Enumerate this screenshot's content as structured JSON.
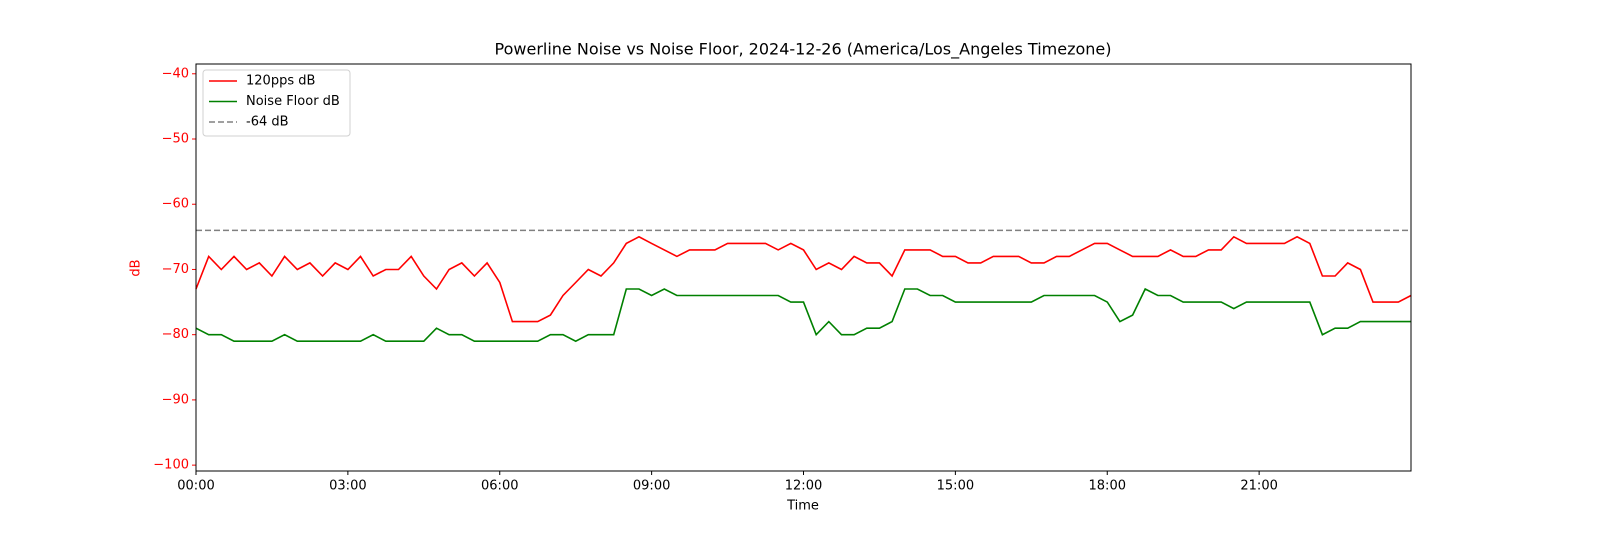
{
  "chart_data": {
    "type": "line",
    "title": "Powerline Noise vs Noise Floor, 2024-12-26 (America/Los_Angeles Timezone)",
    "x_label": "Time",
    "y_label": "dB",
    "axis_color": "red",
    "x": [
      0,
      0.25,
      0.5,
      0.75,
      1,
      1.25,
      1.5,
      1.75,
      2,
      2.25,
      2.5,
      2.75,
      3,
      3.25,
      3.5,
      3.75,
      4,
      4.25,
      4.5,
      4.75,
      5,
      5.25,
      5.5,
      5.75,
      6,
      6.25,
      6.5,
      6.75,
      7,
      7.25,
      7.5,
      7.75,
      8,
      8.25,
      8.5,
      8.75,
      9,
      9.25,
      9.5,
      9.75,
      10,
      10.25,
      10.5,
      10.75,
      11,
      11.25,
      11.5,
      11.75,
      12,
      12.25,
      12.5,
      12.75,
      13,
      13.25,
      13.5,
      13.75,
      14,
      14.25,
      14.5,
      14.75,
      15,
      15.25,
      15.5,
      15.75,
      16,
      16.25,
      16.5,
      16.75,
      17,
      17.25,
      17.5,
      17.75,
      18,
      18.25,
      18.5,
      18.75,
      19,
      19.25,
      19.5,
      19.75,
      20,
      20.25,
      20.5,
      20.75,
      21,
      21.25,
      21.5,
      21.75,
      22,
      22.25,
      22.5,
      22.75,
      23,
      23.25,
      23.5,
      23.75,
      24
    ],
    "series": [
      {
        "name": "120pps dB",
        "color": "red",
        "values": [
          -73,
          -68,
          -70,
          -68,
          -70,
          -69,
          -71,
          -68,
          -70,
          -69,
          -71,
          -69,
          -70,
          -68,
          -71,
          -70,
          -70,
          -68,
          -71,
          -73,
          -70,
          -69,
          -71,
          -69,
          -72,
          -78,
          -78,
          -78,
          -77,
          -74,
          -72,
          -70,
          -71,
          -69,
          -66,
          -65,
          -66,
          -67,
          -68,
          -67,
          -67,
          -67,
          -66,
          -66,
          -66,
          -66,
          -67,
          -66,
          -67,
          -70,
          -69,
          -70,
          -68,
          -69,
          -69,
          -71,
          -67,
          -67,
          -67,
          -68,
          -68,
          -69,
          -69,
          -68,
          -68,
          -68,
          -69,
          -69,
          -68,
          -68,
          -67,
          -66,
          -66,
          -67,
          -68,
          -68,
          -68,
          -67,
          -68,
          -68,
          -67,
          -67,
          -65,
          -66,
          -66,
          -66,
          -66,
          -65,
          -66,
          -71,
          -71,
          -69,
          -70,
          -75,
          -75,
          -75,
          -74
        ]
      },
      {
        "name": "Noise Floor dB",
        "color": "green",
        "values": [
          -79,
          -80,
          -80,
          -81,
          -81,
          -81,
          -81,
          -80,
          -81,
          -81,
          -81,
          -81,
          -81,
          -81,
          -80,
          -81,
          -81,
          -81,
          -81,
          -79,
          -80,
          -80,
          -81,
          -81,
          -81,
          -81,
          -81,
          -81,
          -80,
          -80,
          -81,
          -80,
          -80,
          -80,
          -73,
          -73,
          -74,
          -73,
          -74,
          -74,
          -74,
          -74,
          -74,
          -74,
          -74,
          -74,
          -74,
          -75,
          -75,
          -80,
          -78,
          -80,
          -80,
          -79,
          -79,
          -78,
          -73,
          -73,
          -74,
          -74,
          -75,
          -75,
          -75,
          -75,
          -75,
          -75,
          -75,
          -74,
          -74,
          -74,
          -74,
          -74,
          -75,
          -78,
          -77,
          -73,
          -74,
          -74,
          -75,
          -75,
          -75,
          -75,
          -76,
          -75,
          -75,
          -75,
          -75,
          -75,
          -75,
          -80,
          -79,
          -79,
          -78,
          -78,
          -78,
          -78,
          -78
        ]
      }
    ],
    "hline": {
      "name": "-64 dB",
      "value": -64,
      "color": "gray"
    },
    "xlim": [
      0,
      24
    ],
    "xticks": [
      {
        "value": 0,
        "label": "00:00"
      },
      {
        "value": 3,
        "label": "03:00"
      },
      {
        "value": 6,
        "label": "06:00"
      },
      {
        "value": 9,
        "label": "09:00"
      },
      {
        "value": 12,
        "label": "12:00"
      },
      {
        "value": 15,
        "label": "15:00"
      },
      {
        "value": 18,
        "label": "18:00"
      },
      {
        "value": 21,
        "label": "21:00"
      }
    ],
    "ylim": [
      -100.9,
      -38.5
    ],
    "yticks": [
      {
        "value": -100,
        "label": "−100"
      },
      {
        "value": -90,
        "label": "−90"
      },
      {
        "value": -80,
        "label": "−80"
      },
      {
        "value": -70,
        "label": "−70"
      },
      {
        "value": -60,
        "label": "−60"
      },
      {
        "value": -50,
        "label": "−50"
      },
      {
        "value": -40,
        "label": "−40"
      }
    ],
    "legend": "upper left"
  }
}
